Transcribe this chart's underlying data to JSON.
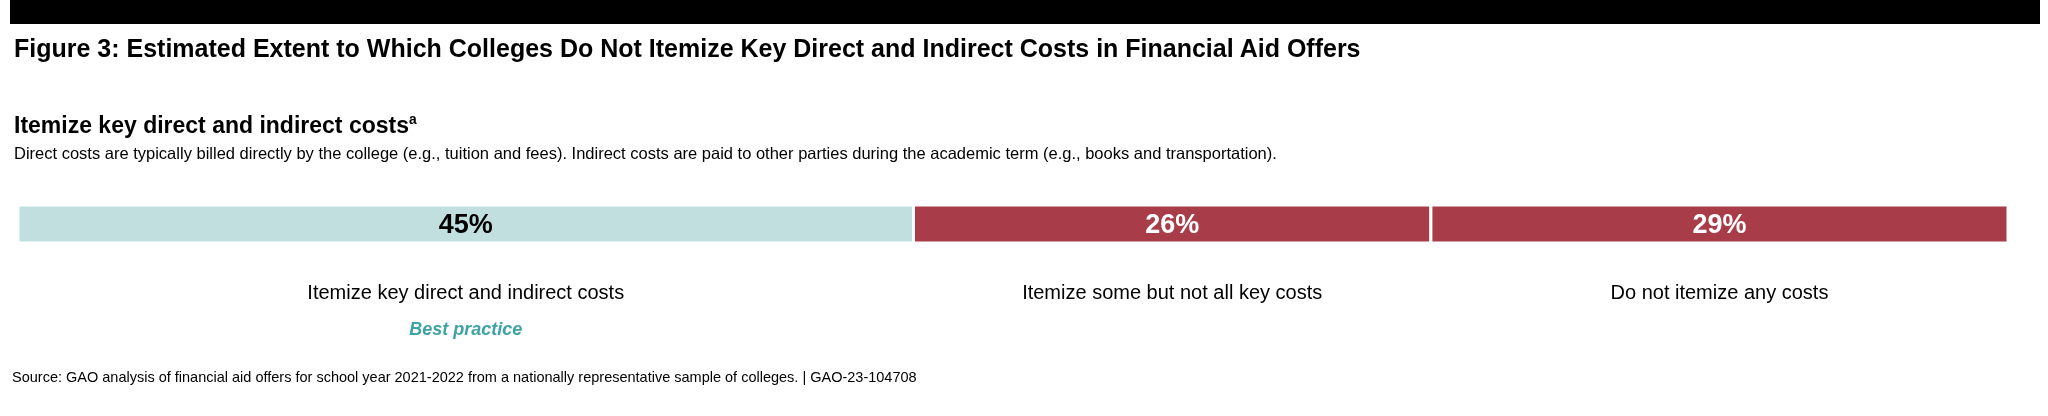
{
  "chart_data": {
    "type": "bar",
    "orientation": "horizontal",
    "stacked": true,
    "categories": [
      null
    ],
    "title": "Figure 3: Estimated Extent to Which Colleges Do Not Itemize Key Direct and Indirect Costs in Financial Aid Offers",
    "subtitle": "Itemize key direct and indirect costs$^{a}$",
    "series": [
      {
        "name": "Itemize key direct and indirect costs",
        "color": "#c2dfe0",
        "values": [
          45
        ],
        "value_labels": [
          "45%"
        ]
      },
      {
        "name": "Itemize some but not all key costs",
        "color": "#a83c48",
        "values": [
          26
        ],
        "value_labels": [
          "26%"
        ]
      },
      {
        "name": "Do not itemize any costs",
        "color": "#a83c48",
        "values": [
          29
        ],
        "value_labels": [
          "29%"
        ]
      }
    ],
    "annotations": [
      "Direct costs are typically billed directly by the college (e.g., tuition and fees). Indirect costs are paid to other parties during the academic term (e.g., books and transportation).",
      "Best practice",
      "Source: GAO analysis of financial aid offers for school year 2021-2022 from a nationally representative sample of colleges.  |  GAO-23-104708"
    ]
  }
}
